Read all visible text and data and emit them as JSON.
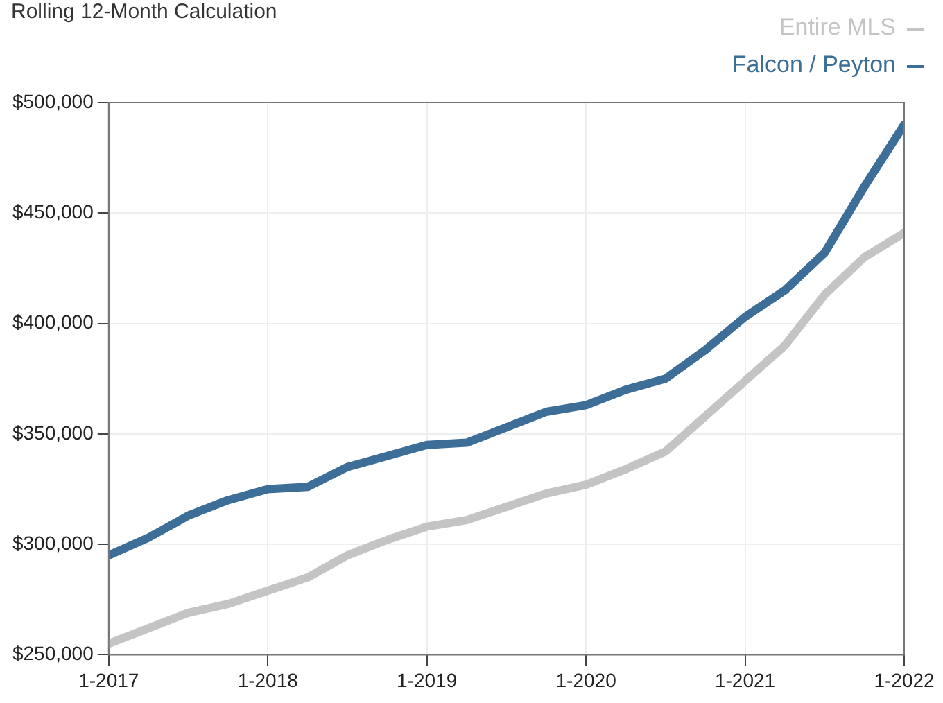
{
  "chart_data": {
    "type": "line",
    "title": "Rolling 12-Month Calculation",
    "x": [
      "2017-01",
      "2017-04",
      "2017-07",
      "2017-10",
      "2018-01",
      "2018-04",
      "2018-07",
      "2018-10",
      "2019-01",
      "2019-04",
      "2019-07",
      "2019-10",
      "2020-01",
      "2020-04",
      "2020-07",
      "2020-10",
      "2021-01",
      "2021-04",
      "2021-07",
      "2021-10",
      "2022-01"
    ],
    "series": [
      {
        "name": "Entire MLS",
        "color": "#c4c4c4",
        "values": [
          255000,
          262000,
          269000,
          273000,
          279000,
          285000,
          295000,
          302000,
          308000,
          311000,
          317000,
          323000,
          327000,
          334000,
          342000,
          358000,
          374000,
          390000,
          413000,
          430000,
          441000
        ]
      },
      {
        "name": "Falcon / Peyton",
        "color": "#3c6e98",
        "values": [
          295000,
          303000,
          313000,
          320000,
          325000,
          326000,
          335000,
          340000,
          345000,
          346000,
          353000,
          360000,
          363000,
          370000,
          375000,
          388000,
          403000,
          415000,
          432000,
          462000,
          490000
        ]
      }
    ],
    "xlim": [
      "2017-01",
      "2022-01"
    ],
    "xticks": [
      {
        "value": "2017-01",
        "label": "1-2017"
      },
      {
        "value": "2018-01",
        "label": "1-2018"
      },
      {
        "value": "2019-01",
        "label": "1-2019"
      },
      {
        "value": "2020-01",
        "label": "1-2020"
      },
      {
        "value": "2021-01",
        "label": "1-2021"
      },
      {
        "value": "2022-01",
        "label": "1-2022"
      }
    ],
    "ylim": [
      250000,
      500000
    ],
    "yticks": [
      {
        "value": 250000,
        "label": "$250,000"
      },
      {
        "value": 300000,
        "label": "$300,000"
      },
      {
        "value": 350000,
        "label": "$350,000"
      },
      {
        "value": 400000,
        "label": "$400,000"
      },
      {
        "value": 450000,
        "label": "$450,000"
      },
      {
        "value": 500000,
        "label": "$500,000"
      }
    ],
    "grid": true,
    "legend": "top right",
    "marker": "none",
    "line_style": "solid"
  }
}
